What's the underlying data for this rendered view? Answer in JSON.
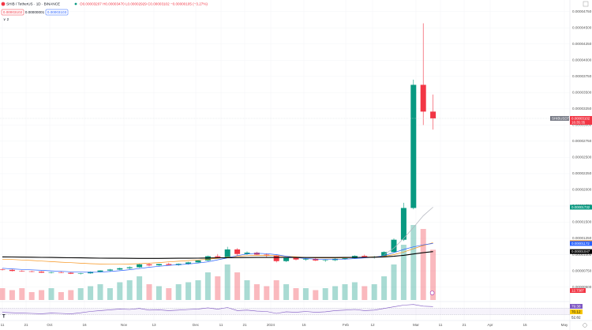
{
  "chart_data": {
    "type": "candlestick",
    "symbol": "SHIB / TetherUS · 1D · BINANCE",
    "ohlc": "O0.00003207 H0.00003470 L0.00002929 C0.00003102 −0.00000105 (−3.27%)",
    "sell_box": "0.00003102",
    "spread_box": "0.00000001",
    "buy_box": "0.00003103",
    "indicator_toggle": "∨ 2",
    "up_color": "#089981",
    "down_color": "#f23645",
    "open": [
      7.7e-06,
      7.65e-06,
      7.48e-06,
      7.42e-06,
      7.38e-06,
      7.22e-06,
      7.28e-06,
      7.2e-06,
      7.05e-06,
      7.12e-06,
      7.35e-06,
      7.55e-06,
      7.7e-06,
      7.9e-06,
      8.05e-06,
      8.5e-06,
      8.35e-06,
      8.55e-06,
      8.4e-06,
      8.58e-06,
      8.8e-06,
      9.1e-06,
      9.75e-06,
      9.6e-06,
      1.08e-05,
      1.01e-05,
      1.03e-05,
      1e-05,
      9.85e-06,
      9e-06,
      9.5e-06,
      9.25e-06,
      9.35e-06,
      9.1e-06,
      9.15e-06,
      9.35e-06,
      9.45e-06,
      9.8e-06,
      9.65e-06,
      9.7e-06,
      1.04e-05,
      1.23e-05,
      1.72e-05,
      3.62e-05,
      3.207e-05
    ],
    "high": [
      7.85e-06,
      7.75e-06,
      7.6e-06,
      7.52e-06,
      7.45e-06,
      7.35e-06,
      7.4e-06,
      7.28e-06,
      7.18e-06,
      7.4e-06,
      7.6e-06,
      7.8e-06,
      8e-06,
      8.2e-06,
      8.6e-06,
      8.7e-06,
      8.6e-06,
      8.75e-06,
      8.65e-06,
      8.9e-06,
      9.2e-06,
      9.85e-06,
      1.01e-05,
      1.12e-05,
      1.1e-05,
      1.05e-05,
      1.045e-05,
      1.02e-05,
      9.95e-06,
      9.6e-06,
      9.7e-06,
      9.5e-06,
      9.45e-06,
      9.3e-06,
      9.45e-06,
      9.6e-06,
      9.9e-06,
      1e-05,
      9.8e-06,
      1.05e-05,
      1.25e-05,
      1.8e-05,
      3.7e-05,
      4.57e-05,
      3.47e-05
    ],
    "low": [
      7.55e-06,
      7.4e-06,
      7.35e-06,
      7.3e-06,
      7.18e-06,
      7.1e-06,
      7.15e-06,
      7e-06,
      6.95e-06,
      7.05e-06,
      7.28e-06,
      7.45e-06,
      7.6e-06,
      7.75e-06,
      7.95e-06,
      8.2e-06,
      8.25e-06,
      8.3e-06,
      8.28e-06,
      8.45e-06,
      8.7e-06,
      9e-06,
      9.4e-06,
      9.5e-06,
      9.9e-06,
      9.95e-06,
      9.9e-06,
      9.6e-06,
      8.8e-06,
      8.85e-06,
      9.1e-06,
      9.05e-06,
      9e-06,
      8.9e-06,
      9e-06,
      9.2e-06,
      9.35e-06,
      9.5e-06,
      9.4e-06,
      9.6e-06,
      1.03e-05,
      1.21e-05,
      1.7e-05,
      3e-05,
      2.929e-05
    ],
    "close": [
      7.65e-06,
      7.48e-06,
      7.42e-06,
      7.38e-06,
      7.22e-06,
      7.28e-06,
      7.2e-06,
      7.05e-06,
      7.12e-06,
      7.35e-06,
      7.55e-06,
      7.7e-06,
      7.9e-06,
      8.05e-06,
      8.5e-06,
      8.35e-06,
      8.55e-06,
      8.4e-06,
      8.58e-06,
      8.8e-06,
      9.1e-06,
      9.75e-06,
      9.6e-06,
      1.08e-05,
      1.01e-05,
      1.03e-05,
      1e-05,
      9.85e-06,
      9e-06,
      9.5e-06,
      9.25e-06,
      9.35e-06,
      9.1e-06,
      9.15e-06,
      9.35e-06,
      9.45e-06,
      9.8e-06,
      9.65e-06,
      9.7e-06,
      1.04e-05,
      1.23e-05,
      1.72e-05,
      3.62e-05,
      3.207e-05,
      3.102e-05
    ],
    "last_price": {
      "value": 3.102e-05,
      "label": "0.00003102",
      "symbol": "SHIBUSDT",
      "countdown": "16:35:35"
    },
    "ylim": [
      3e-06,
      4.929e-05
    ],
    "yticks": [
      {
        "value": 5e-06,
        "label": "0.00000500"
      },
      {
        "value": 7.5e-06,
        "label": "0.00000750"
      },
      {
        "value": 1e-05,
        "label": "0.00001000"
      },
      {
        "value": 1.25e-05,
        "label": "0.00001250"
      },
      {
        "value": 1.5e-05,
        "label": "0.00001500"
      },
      {
        "value": 1.75e-05,
        "label": "0.00001750"
      },
      {
        "value": 2e-05,
        "label": "0.00002000"
      },
      {
        "value": 2.25e-05,
        "label": "0.00002250"
      },
      {
        "value": 2.5e-05,
        "label": "0.00002500"
      },
      {
        "value": 2.75e-05,
        "label": "0.00002750"
      },
      {
        "value": 3e-05,
        "label": "0.00003000"
      },
      {
        "value": 3.25e-05,
        "label": "0.00003250"
      },
      {
        "value": 3.5e-05,
        "label": "0.00003500"
      },
      {
        "value": 3.75e-05,
        "label": "0.00003750"
      },
      {
        "value": 4e-05,
        "label": "0.00004000"
      },
      {
        "value": 4.25e-05,
        "label": "0.00004250"
      },
      {
        "value": 4.5e-05,
        "label": "0.00004500"
      },
      {
        "value": 4.75e-05,
        "label": "0.00004750"
      }
    ],
    "grid": true,
    "x_labels": [
      "11",
      "21",
      "Oct",
      "16",
      "Nov",
      "13",
      "Dec",
      "11",
      "21",
      "2024",
      "15",
      "Feb",
      "12",
      "Mar",
      "11",
      "21",
      "Apr",
      "15",
      "May"
    ],
    "moving_averages": [
      {
        "color": "#b2b5be",
        "label": "0.00001732",
        "tag_color": "#089981",
        "values": [
          null,
          null,
          null,
          null,
          null,
          null,
          null,
          null,
          null,
          null,
          null,
          null,
          null,
          null,
          null,
          null,
          null,
          null,
          null,
          null,
          null,
          null,
          null,
          null,
          null,
          null,
          null,
          null,
          null,
          null,
          null,
          null,
          null,
          null,
          null,
          null,
          null,
          null,
          null,
          1e-05,
          1.1e-05,
          1.25e-05,
          1.42e-05,
          1.6e-05,
          1.732e-05
        ]
      },
      {
        "color": "#f7931a",
        "label": "0.00001184",
        "tag_color": "#f7931a",
        "values": [
          9.3e-06,
          9.25e-06,
          9.18e-06,
          9.1e-06,
          9e-06,
          8.92e-06,
          8.84e-06,
          8.76e-06,
          8.68e-06,
          8.6e-06,
          8.55e-06,
          8.52e-06,
          8.52e-06,
          8.55e-06,
          8.6e-06,
          8.68e-06,
          8.78e-06,
          8.88e-06,
          8.98e-06,
          9.08e-06,
          9.18e-06,
          9.3e-06,
          9.45e-06,
          9.6e-06,
          9.75e-06,
          9.85e-06,
          9.9e-06,
          9.9e-06,
          9.85e-06,
          9.75e-06,
          9.65e-06,
          9.55e-06,
          9.5e-06,
          9.48e-06,
          9.48e-06,
          9.5e-06,
          9.55e-06,
          9.6e-06,
          9.65e-06,
          9.75e-06,
          1e-05,
          1.04e-05,
          1.09e-05,
          1.14e-05,
          1.184e-05
        ]
      },
      {
        "color": "#2962ff",
        "label": "0.00001172",
        "tag_color": "#2962ff",
        "values": [
          7.9e-06,
          7.8e-06,
          7.72e-06,
          7.65e-06,
          7.58e-06,
          7.5e-06,
          7.42e-06,
          7.35e-06,
          7.3e-06,
          7.28e-06,
          7.3e-06,
          7.4e-06,
          7.52e-06,
          7.68e-06,
          7.85e-06,
          8.05e-06,
          8.2e-06,
          8.35e-06,
          8.45e-06,
          8.55e-06,
          8.7e-06,
          8.9e-06,
          9.2e-06,
          9.5e-06,
          9.85e-06,
          1.01e-05,
          1.02e-05,
          1.015e-05,
          1e-05,
          9.75e-06,
          9.55e-06,
          9.4e-06,
          9.3e-06,
          9.25e-06,
          9.25e-06,
          9.3e-06,
          9.4e-06,
          9.5e-06,
          9.6e-06,
          9.85e-06,
          1.03e-05,
          1.08e-05,
          1.12e-05,
          1.15e-05,
          1.172e-05
        ]
      },
      {
        "color": "#000000",
        "label": "0.00001047",
        "tag_color": "#000000",
        "values": [
          9.65e-06,
          9.64e-06,
          9.62e-06,
          9.6e-06,
          9.58e-06,
          9.56e-06,
          9.54e-06,
          9.52e-06,
          9.5e-06,
          9.48e-06,
          9.46e-06,
          9.45e-06,
          9.44e-06,
          9.43e-06,
          9.42e-06,
          9.42e-06,
          9.42e-06,
          9.43e-06,
          9.44e-06,
          9.45e-06,
          9.46e-06,
          9.48e-06,
          9.5e-06,
          9.52e-06,
          9.54e-06,
          9.55e-06,
          9.56e-06,
          9.56e-06,
          9.56e-06,
          9.56e-06,
          9.56e-06,
          9.55e-06,
          9.55e-06,
          9.55e-06,
          9.55e-06,
          9.56e-06,
          9.57e-06,
          9.58e-06,
          9.6e-06,
          9.65e-06,
          9.75e-06,
          9.9e-06,
          1.01e-05,
          1.03e-05,
          1.047e-05
        ]
      }
    ],
    "volume": {
      "label": "12.738T",
      "values": [
        3,
        2.5,
        3,
        2,
        2.5,
        3,
        2,
        2.5,
        3,
        3.5,
        4,
        3,
        4.5,
        5,
        6,
        4,
        3.5,
        3,
        4,
        4.5,
        5,
        7,
        6,
        9,
        7,
        5,
        4,
        3.5,
        5,
        4,
        3,
        3,
        2.5,
        3,
        3.5,
        4,
        4.5,
        3.5,
        4,
        6,
        9,
        14,
        19,
        18,
        12.738
      ]
    },
    "rsi": {
      "ylim": [
        0,
        100
      ],
      "levels": [
        30,
        70
      ],
      "color": "#7e57c2",
      "labels": [
        "79.38",
        "70.12",
        "52.82"
      ],
      "values": [
        45,
        42,
        40,
        38,
        36,
        40,
        38,
        35,
        42,
        50,
        55,
        60,
        65,
        62,
        68,
        58,
        60,
        55,
        58,
        62,
        65,
        72,
        64,
        74,
        55,
        58,
        52,
        50,
        38,
        48,
        45,
        50,
        45,
        48,
        55,
        58,
        62,
        55,
        58,
        68,
        78,
        88,
        92,
        82,
        79.38
      ]
    }
  }
}
